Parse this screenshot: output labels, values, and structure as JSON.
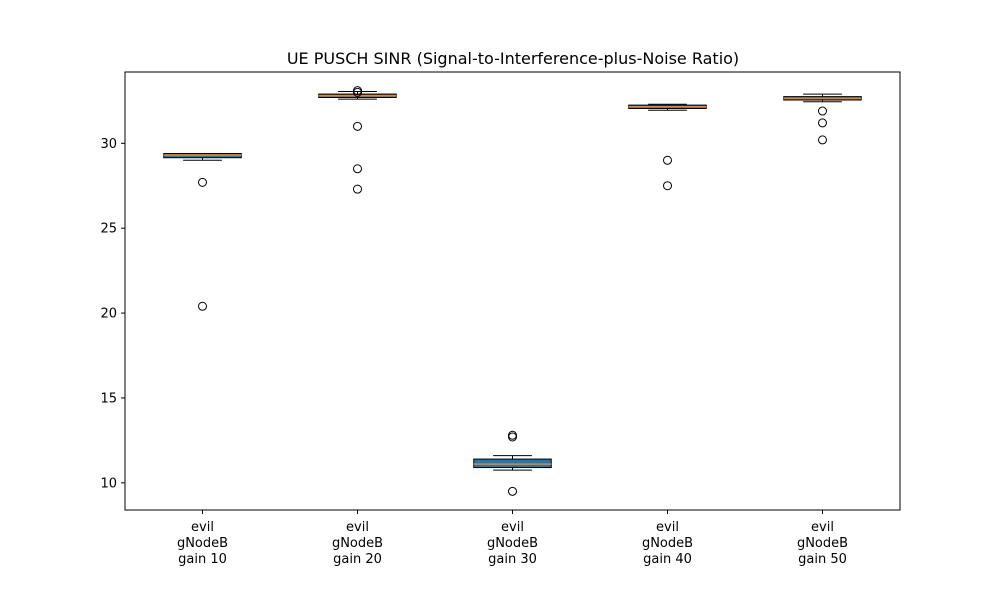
{
  "chart_data": {
    "type": "box",
    "title": "UE PUSCH SINR (Signal-to-Interference-plus-Noise Ratio)",
    "xlabel": "",
    "ylabel": "",
    "ylim": [
      8.4,
      34.2
    ],
    "y_ticks": [
      10,
      15,
      20,
      25,
      30
    ],
    "grid": false,
    "box_fill_color": "#1f77b4",
    "median_color": "#ff7f0e",
    "categories": [
      [
        "evil",
        "gNodeB",
        "gain 10"
      ],
      [
        "evil",
        "gNodeB",
        "gain 20"
      ],
      [
        "evil",
        "gNodeB",
        "gain 30"
      ],
      [
        "evil",
        "gNodeB",
        "gain 40"
      ],
      [
        "evil",
        "gNodeB",
        "gain 50"
      ]
    ],
    "boxes": [
      {
        "whisker_low": 29.0,
        "q1": 29.15,
        "median": 29.3,
        "q3": 29.4,
        "whisker_high": 29.4,
        "outliers": [
          27.7,
          20.4
        ]
      },
      {
        "whisker_low": 32.6,
        "q1": 32.7,
        "median": 32.8,
        "q3": 32.9,
        "whisker_high": 33.05,
        "outliers": [
          33.1,
          33.0,
          31.0,
          28.5,
          27.3
        ]
      },
      {
        "whisker_low": 10.75,
        "q1": 10.9,
        "median": 11.1,
        "q3": 11.4,
        "whisker_high": 11.6,
        "outliers": [
          12.8,
          12.7,
          9.5
        ]
      },
      {
        "whisker_low": 31.95,
        "q1": 32.05,
        "median": 32.15,
        "q3": 32.25,
        "whisker_high": 32.3,
        "outliers": [
          29.0,
          27.5
        ]
      },
      {
        "whisker_low": 32.45,
        "q1": 32.55,
        "median": 32.65,
        "q3": 32.75,
        "whisker_high": 32.9,
        "outliers": [
          31.9,
          31.2,
          30.2
        ]
      }
    ]
  }
}
